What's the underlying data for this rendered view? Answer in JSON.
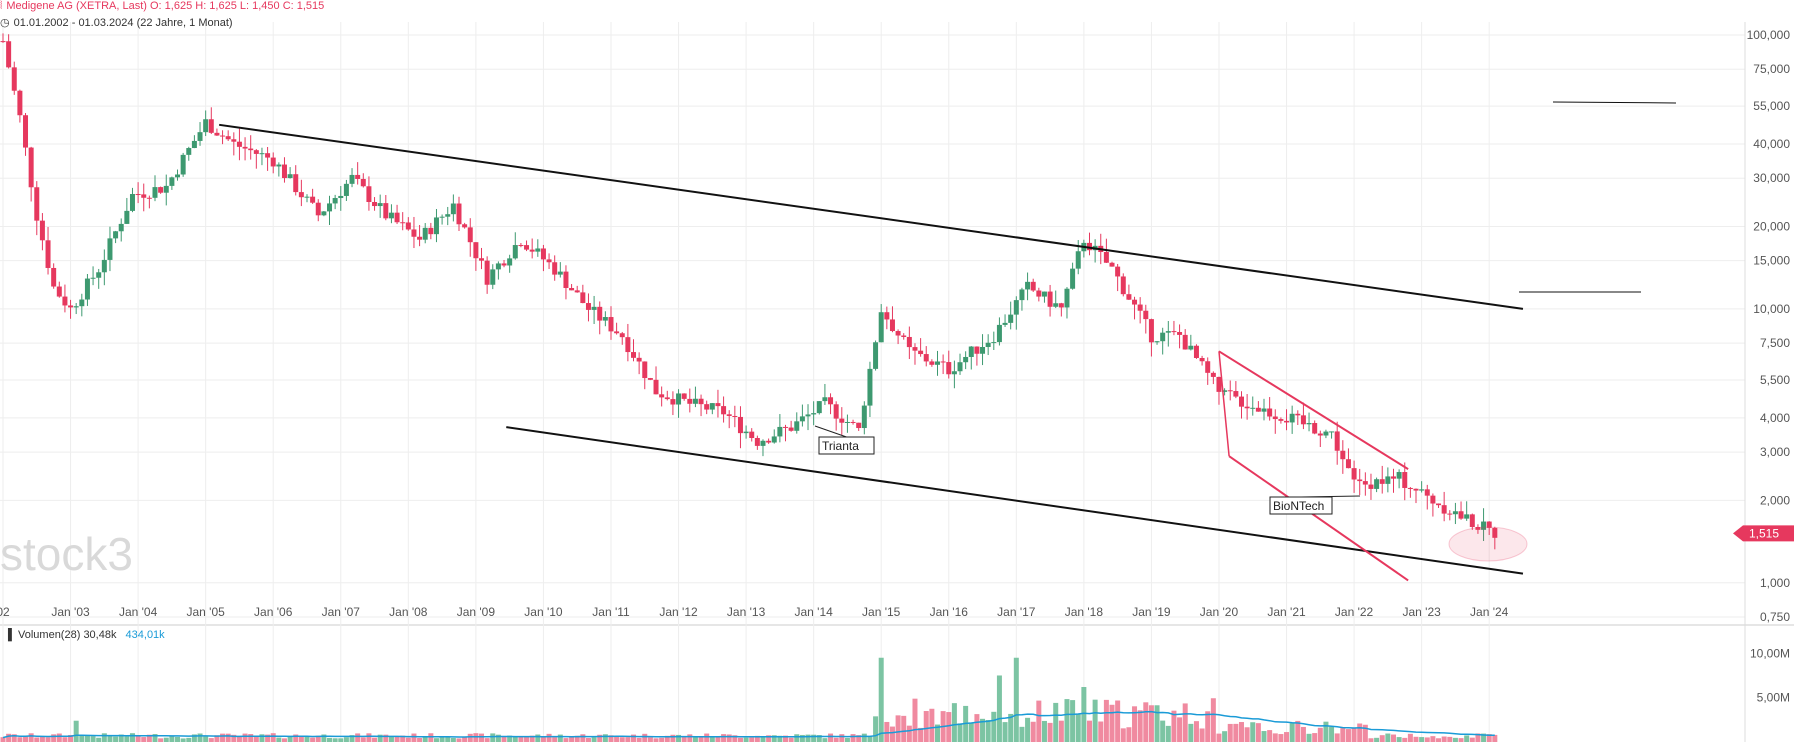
{
  "header": {
    "instrument": "Medigene AG (XETRA, Last)",
    "ohlc": "O: 1,625  H: 1,625  L: 1,450  C: 1,515",
    "range": "01.01.2002 - 01.03.2024",
    "span": "(22 Jahre, 1 Monat)"
  },
  "watermark": "stock3",
  "last_price_label": "1,515",
  "colors": {
    "up": "#3d9970",
    "down": "#e6385e",
    "trend": "#111111",
    "channel": "#e6385e",
    "volume_ma": "#1a9bd7",
    "axis_text": "#555555"
  },
  "volume_legend": {
    "label": "Volumen(28)",
    "value1": "30,48k",
    "value2": "434,01k"
  },
  "chart_data": {
    "type": "candlestick",
    "price_axis": {
      "scale": "log",
      "ticks": [
        "100,000",
        "75,000",
        "55,000",
        "40,000",
        "30,000",
        "20,000",
        "15,000",
        "10,000",
        "7,500",
        "5,500",
        "4,000",
        "3,000",
        "2,000",
        "1,000",
        "0,750"
      ]
    },
    "x_axis": {
      "ticks": [
        "02",
        "Jan '03",
        "Jan '04",
        "Jan '05",
        "Jan '06",
        "Jan '07",
        "Jan '08",
        "Jan '09",
        "Jan '10",
        "Jan '11",
        "Jan '12",
        "Jan '13",
        "Jan '14",
        "Jan '15",
        "Jan '16",
        "Jan '17",
        "Jan '18",
        "Jan '19",
        "Jan '20",
        "Jan '21",
        "Jan '22",
        "Jan '23",
        "Jan '24"
      ]
    },
    "series_monthly_close_approx": [
      {
        "x": "2002-01",
        "y": 95
      },
      {
        "x": "2002-04",
        "y": 50
      },
      {
        "x": "2002-07",
        "y": 22
      },
      {
        "x": "2002-10",
        "y": 12
      },
      {
        "x": "2003-01",
        "y": 10
      },
      {
        "x": "2003-06",
        "y": 14
      },
      {
        "x": "2003-12",
        "y": 26
      },
      {
        "x": "2004-06",
        "y": 28
      },
      {
        "x": "2005-01",
        "y": 48
      },
      {
        "x": "2005-06",
        "y": 40
      },
      {
        "x": "2006-01",
        "y": 35
      },
      {
        "x": "2006-09",
        "y": 22
      },
      {
        "x": "2007-03",
        "y": 30
      },
      {
        "x": "2007-09",
        "y": 22
      },
      {
        "x": "2008-03",
        "y": 18
      },
      {
        "x": "2008-09",
        "y": 24
      },
      {
        "x": "2009-03",
        "y": 13
      },
      {
        "x": "2009-09",
        "y": 18
      },
      {
        "x": "2010-03",
        "y": 14
      },
      {
        "x": "2010-09",
        "y": 10
      },
      {
        "x": "2011-03",
        "y": 8
      },
      {
        "x": "2011-09",
        "y": 5
      },
      {
        "x": "2012-03",
        "y": 4.5
      },
      {
        "x": "2012-09",
        "y": 4.2
      },
      {
        "x": "2013-03",
        "y": 3.3
      },
      {
        "x": "2013-09",
        "y": 3.7
      },
      {
        "x": "2014-03",
        "y": 4.5
      },
      {
        "x": "2014-09",
        "y": 3.6
      },
      {
        "x": "2015-01",
        "y": 10
      },
      {
        "x": "2015-06",
        "y": 7
      },
      {
        "x": "2016-01",
        "y": 6
      },
      {
        "x": "2016-09",
        "y": 8
      },
      {
        "x": "2017-03",
        "y": 12
      },
      {
        "x": "2017-09",
        "y": 10
      },
      {
        "x": "2018-01",
        "y": 18
      },
      {
        "x": "2018-06",
        "y": 14
      },
      {
        "x": "2019-01",
        "y": 8
      },
      {
        "x": "2019-06",
        "y": 8
      },
      {
        "x": "2020-01",
        "y": 5
      },
      {
        "x": "2020-06",
        "y": 4.5
      },
      {
        "x": "2021-01",
        "y": 4
      },
      {
        "x": "2021-09",
        "y": 3.5
      },
      {
        "x": "2022-01",
        "y": 2.3
      },
      {
        "x": "2022-09",
        "y": 2.4
      },
      {
        "x": "2023-03",
        "y": 2.0
      },
      {
        "x": "2023-09",
        "y": 1.7
      },
      {
        "x": "2024-02",
        "y": 1.515
      }
    ],
    "volume_axis": {
      "ticks": [
        "10,00M",
        "5,00M"
      ]
    },
    "annotations": [
      "Trianta",
      "BioNTech"
    ]
  }
}
